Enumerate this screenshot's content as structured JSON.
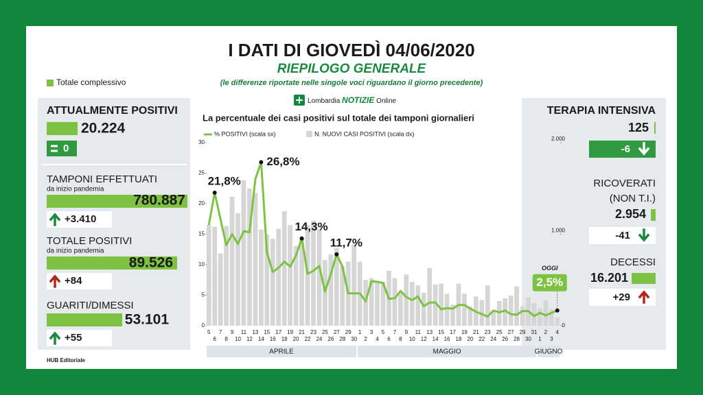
{
  "header": {
    "title": "I DATI DI GIOVEDÌ 04/06/2020",
    "subtitle": "RIEPILOGO GENERALE",
    "note": "(le differenze riportate nelle singole voci riguardano il giorno precedente)",
    "legend": "Totale complessivo",
    "logo": {
      "brand": "Lombardia",
      "name": "NOTIZIE",
      "suffix": "Online"
    }
  },
  "left_panel": [
    {
      "label": "ATTUALMENTE POSITIVI",
      "total": "20.224",
      "change": "0"
    },
    {
      "label": "TAMPONI EFFETTUATI",
      "sublabel": "da inizio pandemia",
      "total": "780.887",
      "change": "+3.410"
    },
    {
      "label": "TOTALE POSITIVI",
      "sublabel": "da inizio pandemia",
      "total": "89.526",
      "change": "+84"
    },
    {
      "label": "GUARITI/DIMESSI",
      "total": "53.101",
      "change": "+55"
    }
  ],
  "right_panel": [
    {
      "label": "TERAPIA INTENSIVA",
      "total": "125",
      "change": "-6"
    },
    {
      "label": "RICOVERATI",
      "sublabel": "(NON T.I.)",
      "total": "2.954",
      "change": "-41"
    },
    {
      "label": "DECESSI",
      "total": "16.201",
      "change": "+29"
    }
  ],
  "footer": "HUB Editoriale",
  "chart_data": {
    "type": "combo",
    "title": "La percentuale dei casi positivi sul totale dei tamponi giornalieri",
    "categories": [
      "5",
      "6",
      "7",
      "8",
      "9",
      "10",
      "11",
      "12",
      "13",
      "14",
      "15",
      "16",
      "17",
      "18",
      "19",
      "20",
      "21",
      "22",
      "23",
      "24",
      "25",
      "26",
      "27",
      "28",
      "29",
      "30",
      "1",
      "2",
      "3",
      "4",
      "5",
      "6",
      "7",
      "8",
      "9",
      "10",
      "11",
      "12",
      "13",
      "14",
      "15",
      "16",
      "17",
      "18",
      "19",
      "20",
      "21",
      "22",
      "23",
      "24",
      "25",
      "26",
      "27",
      "28",
      "29",
      "30",
      "31",
      "1",
      "2",
      "3",
      "4"
    ],
    "groups": [
      "APRILE",
      "MAGGIO",
      "GIUGNO"
    ],
    "series": [
      {
        "name": "N. NUOVI CASI POSITIVI (scala dx)",
        "type": "bar",
        "axis": "y2",
        "color": "#d6d6d6",
        "values": [
          1100,
          1080,
          790,
          1090,
          1410,
          1230,
          1590,
          1500,
          1450,
          1050,
          1000,
          950,
          1060,
          1250,
          1100,
          870,
          960,
          1100,
          1150,
          1050,
          720,
          780,
          850,
          650,
          700,
          890,
          700,
          500,
          520,
          480,
          480,
          600,
          520,
          360,
          560,
          480,
          440,
          360,
          630,
          450,
          460,
          350,
          230,
          460,
          350,
          210,
          320,
          280,
          440,
          160,
          270,
          300,
          330,
          430,
          210,
          310,
          250,
          190,
          280,
          180,
          90
        ]
      },
      {
        "name": "% POSITIVI (scala sx)",
        "type": "line",
        "color": "#7dc242",
        "values": [
          16.5,
          21.8,
          17.5,
          13.2,
          15,
          13.4,
          15.5,
          15.3,
          24,
          26.8,
          12,
          8.8,
          9.5,
          10.5,
          9.7,
          11.5,
          14.3,
          8.5,
          9,
          9.8,
          5.6,
          8.5,
          11.7,
          9.7,
          5.3,
          5.3,
          5.3,
          4,
          7.3,
          7.2,
          7,
          4.4,
          4.5,
          5.7,
          4.7,
          4.2,
          4.8,
          3.2,
          3.8,
          3.8,
          2.7,
          2.9,
          2.8,
          3.4,
          3.4,
          2.8,
          2.3,
          1.9,
          1.5,
          2.5,
          2.2,
          2.5,
          1.9,
          1.8,
          2.4,
          2.4,
          1.6,
          2.1,
          1.7,
          2.1,
          2.5
        ],
        "value_labels": [
          null,
          "21,8%",
          null,
          null,
          null,
          null,
          null,
          null,
          null,
          "26,8%",
          null,
          null,
          null,
          null,
          null,
          null,
          "14,3%",
          null,
          null,
          null,
          null,
          null,
          "11,7%",
          null,
          null,
          null,
          null,
          null,
          null,
          null,
          null,
          null,
          null,
          null,
          null,
          null,
          null,
          null,
          null,
          null,
          null,
          null,
          null,
          null,
          null,
          null,
          null,
          null,
          null,
          null,
          null,
          null,
          null,
          null,
          null,
          null,
          null,
          null,
          null,
          null,
          "2,5%"
        ]
      }
    ],
    "annotations": [
      "OGGI"
    ],
    "ylim": [
      0,
      30
    ],
    "yticks": [
      0,
      5,
      10,
      15,
      20,
      25,
      30
    ],
    "y2lim": [
      0,
      2000
    ],
    "y2ticks": [
      0,
      {
        "value": 1000,
        "label": "1.000"
      },
      {
        "value": 2000,
        "label": "2.000"
      }
    ]
  }
}
